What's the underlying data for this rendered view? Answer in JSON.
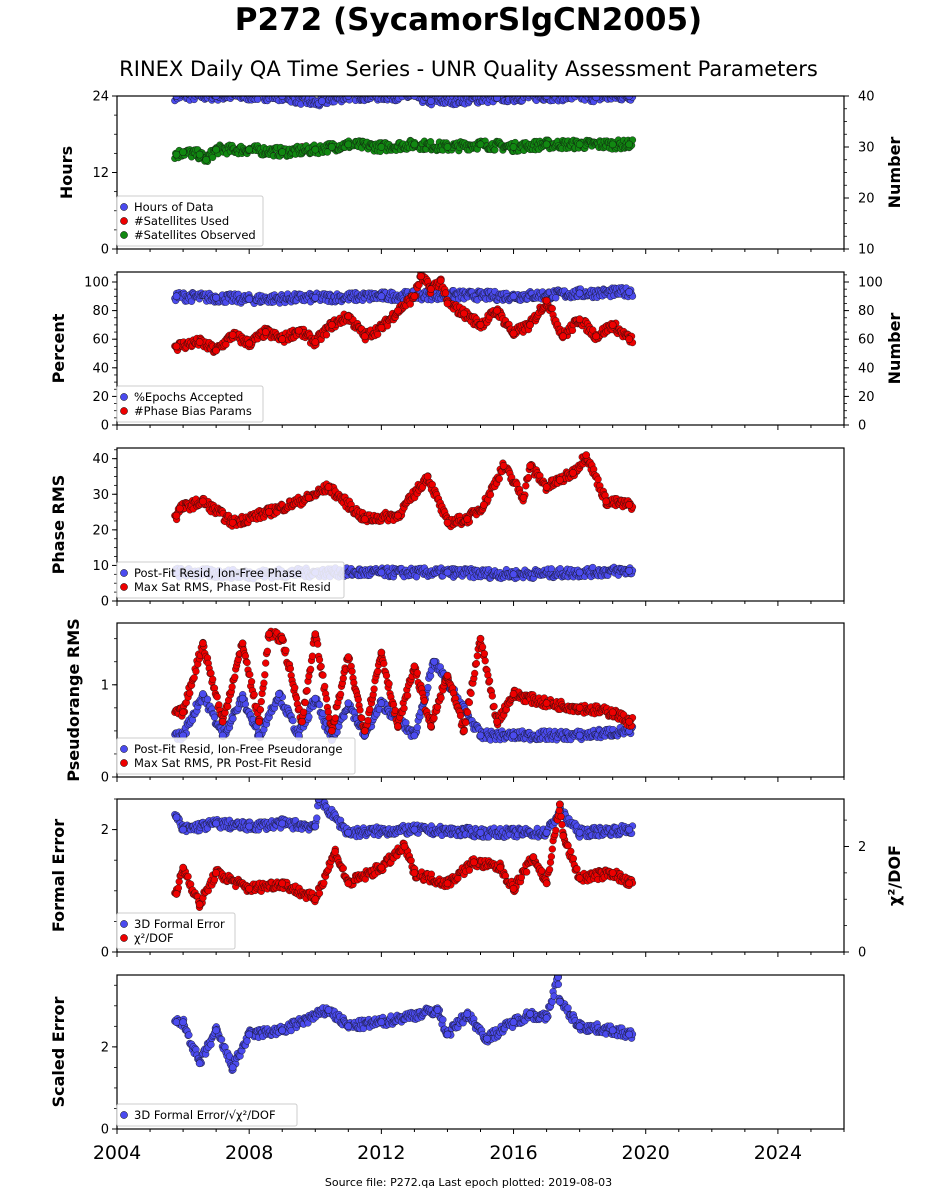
{
  "figure": {
    "title": "P272 (SycamorSlgCN2005)",
    "subtitle": "RINEX Daily QA Time Series - UNR Quality Assessment Parameters",
    "footer": "Source file: P272.qa Last epoch plotted: 2019-08-03"
  },
  "colors": {
    "blue": "#4b4bef",
    "red": "#ee0000",
    "green": "#118811",
    "edge": "#111111"
  },
  "chart_data": [
    {
      "type": "scatter",
      "name": "panel-hours",
      "xlim": [
        2004,
        2026
      ],
      "ylabel": "Hours",
      "ylim": [
        0,
        24
      ],
      "yticks": [
        0,
        12,
        24
      ],
      "ylabel_right": "Number",
      "ylim_right": [
        10,
        40
      ],
      "yticks_right": [
        10,
        20,
        30,
        40
      ],
      "legend": "bottom-left",
      "series": [
        {
          "name": "Hours of Data",
          "color": "blue",
          "axis": "left",
          "x_range": [
            2005.75,
            2019.6
          ],
          "points": [
            [
              2005.8,
              24
            ],
            [
              2007,
              24
            ],
            [
              2009,
              24
            ],
            [
              2010.1,
              22.8
            ],
            [
              2010.2,
              23.2
            ],
            [
              2011,
              24
            ],
            [
              2013,
              24
            ],
            [
              2013.5,
              23.2
            ],
            [
              2015.5,
              23.7
            ],
            [
              2017,
              24
            ],
            [
              2018.5,
              23.8
            ],
            [
              2019.5,
              24
            ]
          ]
        },
        {
          "name": "#Satellites Used",
          "color": "red",
          "axis": "right",
          "points": [
            [
              2009.6,
              30
            ]
          ]
        },
        {
          "name": "#Satellites Observed",
          "color": "green",
          "axis": "right",
          "x_range": [
            2005.75,
            2019.6
          ],
          "points": [
            [
              2005.8,
              28.5
            ],
            [
              2006,
              29
            ],
            [
              2006.5,
              28.5
            ],
            [
              2006.7,
              27.5
            ],
            [
              2007,
              29.5
            ],
            [
              2008,
              29.5
            ],
            [
              2009,
              29
            ],
            [
              2010,
              29.5
            ],
            [
              2010.5,
              30
            ],
            [
              2011,
              30.5
            ],
            [
              2012,
              30
            ],
            [
              2013,
              30.5
            ],
            [
              2014,
              30
            ],
            [
              2015,
              30.5
            ],
            [
              2016,
              30
            ],
            [
              2017,
              30.5
            ],
            [
              2018,
              30.5
            ],
            [
              2019,
              30.5
            ],
            [
              2019.5,
              30.5
            ]
          ]
        }
      ]
    },
    {
      "type": "scatter",
      "name": "panel-percent",
      "xlim": [
        2004,
        2026
      ],
      "ylabel": "Percent",
      "ylim": [
        0,
        107
      ],
      "yticks": [
        0,
        20,
        40,
        60,
        80,
        100
      ],
      "ylabel_right": "Number",
      "ylim_right": [
        0,
        107
      ],
      "yticks_right": [
        0,
        20,
        40,
        60,
        80,
        100
      ],
      "legend": "bottom-left",
      "series": [
        {
          "name": "%Epochs Accepted",
          "color": "blue",
          "axis": "left",
          "x_range": [
            2005.75,
            2019.6
          ],
          "points": [
            [
              2005.8,
              90
            ],
            [
              2007,
              89
            ],
            [
              2008,
              88
            ],
            [
              2010,
              89
            ],
            [
              2012,
              90
            ],
            [
              2014,
              91
            ],
            [
              2016,
              90
            ],
            [
              2018,
              92
            ],
            [
              2019.5,
              93
            ]
          ]
        },
        {
          "name": "#Phase Bias Params",
          "color": "red",
          "axis": "right",
          "x_range": [
            2005.75,
            2019.6
          ],
          "points": [
            [
              2005.8,
              55
            ],
            [
              2006.5,
              58
            ],
            [
              2007,
              52
            ],
            [
              2007.5,
              63
            ],
            [
              2008,
              57
            ],
            [
              2008.5,
              65
            ],
            [
              2009,
              60
            ],
            [
              2009.5,
              66
            ],
            [
              2010,
              58
            ],
            [
              2010.5,
              70
            ],
            [
              2011,
              76
            ],
            [
              2011.5,
              62
            ],
            [
              2012,
              68
            ],
            [
              2012.5,
              80
            ],
            [
              2013,
              90
            ],
            [
              2013.2,
              104
            ],
            [
              2013.5,
              95
            ],
            [
              2013.8,
              101
            ],
            [
              2014,
              85
            ],
            [
              2014.5,
              78
            ],
            [
              2015,
              70
            ],
            [
              2015.5,
              80
            ],
            [
              2016,
              64
            ],
            [
              2016.5,
              70
            ],
            [
              2017,
              87
            ],
            [
              2017.5,
              62
            ],
            [
              2018,
              74
            ],
            [
              2018.5,
              62
            ],
            [
              2019,
              70
            ],
            [
              2019.5,
              60
            ]
          ]
        }
      ]
    },
    {
      "type": "scatter",
      "name": "panel-phase-rms",
      "xlim": [
        2004,
        2026
      ],
      "ylabel": "Phase RMS",
      "ylim": [
        0,
        43
      ],
      "yticks": [
        0,
        10,
        20,
        30,
        40
      ],
      "legend": "bottom-left",
      "series": [
        {
          "name": "Post-Fit Resid, Ion-Free Phase",
          "color": "blue",
          "axis": "left",
          "x_range": [
            2005.75,
            2019.6
          ],
          "points": [
            [
              2005.8,
              8
            ],
            [
              2008,
              7.5
            ],
            [
              2010,
              8
            ],
            [
              2012,
              8
            ],
            [
              2014,
              8
            ],
            [
              2016,
              7.5
            ],
            [
              2018,
              8
            ],
            [
              2019.5,
              8.5
            ]
          ]
        },
        {
          "name": "Max Sat RMS, Phase Post-Fit Resid",
          "color": "red",
          "axis": "left",
          "x_range": [
            2005.75,
            2019.6
          ],
          "points": [
            [
              2005.8,
              24
            ],
            [
              2005.9,
              26
            ],
            [
              2006.6,
              28
            ],
            [
              2007.5,
              22
            ],
            [
              2008.6,
              25
            ],
            [
              2009.8,
              29
            ],
            [
              2010.4,
              32
            ],
            [
              2011.5,
              23
            ],
            [
              2012.5,
              24
            ],
            [
              2013.4,
              35
            ],
            [
              2014,
              22
            ],
            [
              2014.6,
              23
            ],
            [
              2015.1,
              27
            ],
            [
              2015.7,
              38
            ],
            [
              2016.3,
              29
            ],
            [
              2016.5,
              38
            ],
            [
              2017,
              32
            ],
            [
              2017.4,
              34
            ],
            [
              2017.8,
              36
            ],
            [
              2018.2,
              41
            ],
            [
              2018.8,
              28
            ],
            [
              2019.5,
              27
            ]
          ]
        }
      ]
    },
    {
      "type": "scatter",
      "name": "panel-pseudorange-rms",
      "xlim": [
        2004,
        2026
      ],
      "ylabel": "Pseudorange RMS",
      "ylim": [
        0,
        1.67
      ],
      "yticks": [
        0,
        1
      ],
      "legend": "bottom-left",
      "series": [
        {
          "name": "Post-Fit Resid, Ion-Free Pseudorange",
          "color": "blue",
          "axis": "left",
          "x_range": [
            2005.75,
            2019.6
          ],
          "points": [
            [
              2006,
              0.45
            ],
            [
              2006.6,
              0.9
            ],
            [
              2007.2,
              0.45
            ],
            [
              2007.8,
              0.85
            ],
            [
              2008.3,
              0.45
            ],
            [
              2008.9,
              0.9
            ],
            [
              2009.5,
              0.45
            ],
            [
              2010,
              0.85
            ],
            [
              2010.5,
              0.4
            ],
            [
              2011,
              0.8
            ],
            [
              2011.5,
              0.45
            ],
            [
              2012,
              0.8
            ],
            [
              2013,
              0.45
            ],
            [
              2013.6,
              1.25
            ],
            [
              2015,
              0.45
            ],
            [
              2016,
              0.45
            ],
            [
              2018,
              0.45
            ],
            [
              2019.5,
              0.5
            ]
          ]
        },
        {
          "name": "Max Sat RMS, PR Post-Fit Resid",
          "color": "red",
          "axis": "left",
          "x_range": [
            2005.75,
            2019.6
          ],
          "points": [
            [
              2006,
              0.7
            ],
            [
              2006.6,
              1.45
            ],
            [
              2007.2,
              0.6
            ],
            [
              2007.8,
              1.45
            ],
            [
              2008.3,
              0.6
            ],
            [
              2008.6,
              1.55
            ],
            [
              2009,
              1.5
            ],
            [
              2009.6,
              0.6
            ],
            [
              2010,
              1.55
            ],
            [
              2010.5,
              0.5
            ],
            [
              2011,
              1.3
            ],
            [
              2011.5,
              0.5
            ],
            [
              2012,
              1.35
            ],
            [
              2012.5,
              0.55
            ],
            [
              2013,
              1.2
            ],
            [
              2013.5,
              0.55
            ],
            [
              2014,
              1.1
            ],
            [
              2014.5,
              0.5
            ],
            [
              2015,
              1.5
            ],
            [
              2015.5,
              0.6
            ],
            [
              2016,
              0.9
            ],
            [
              2017,
              0.8
            ],
            [
              2018,
              0.75
            ],
            [
              2019,
              0.7
            ],
            [
              2019.5,
              0.6
            ]
          ]
        }
      ]
    },
    {
      "type": "scatter",
      "name": "panel-formal-error",
      "xlim": [
        2004,
        2026
      ],
      "ylabel": "Formal Error",
      "ylim": [
        0,
        2.5
      ],
      "yticks": [
        0,
        2
      ],
      "ylabel_right": "χ²/DOF",
      "ylim_right": [
        0,
        2.9
      ],
      "yticks_right": [
        0,
        2
      ],
      "legend": "bottom-left",
      "series": [
        {
          "name": "3D Formal Error",
          "color": "blue",
          "axis": "left",
          "x_range": [
            2005.75,
            2019.6
          ],
          "points": [
            [
              2005.8,
              2.2
            ],
            [
              2006,
              2
            ],
            [
              2007,
              2.1
            ],
            [
              2008,
              2.05
            ],
            [
              2009,
              2.1
            ],
            [
              2010,
              2.05
            ],
            [
              2010.1,
              2.5
            ],
            [
              2011,
              1.95
            ],
            [
              2013,
              2
            ],
            [
              2015,
              1.95
            ],
            [
              2017,
              1.95
            ],
            [
              2017.4,
              2.3
            ],
            [
              2018,
              1.95
            ],
            [
              2019.5,
              2
            ]
          ]
        },
        {
          "name": "χ²/DOF",
          "color": "red",
          "axis": "right",
          "x_range": [
            2005.75,
            2019.6
          ],
          "points": [
            [
              2005.8,
              1.1
            ],
            [
              2006,
              1.6
            ],
            [
              2006.5,
              0.9
            ],
            [
              2007,
              1.5
            ],
            [
              2008,
              1.2
            ],
            [
              2009,
              1.3
            ],
            [
              2010,
              1
            ],
            [
              2010.6,
              1.9
            ],
            [
              2011,
              1.3
            ],
            [
              2012,
              1.6
            ],
            [
              2012.7,
              2
            ],
            [
              2013,
              1.5
            ],
            [
              2014,
              1.3
            ],
            [
              2014.8,
              1.7
            ],
            [
              2015.6,
              1.6
            ],
            [
              2016,
              1.2
            ],
            [
              2016.6,
              1.8
            ],
            [
              2017,
              1.3
            ],
            [
              2017.4,
              2.8
            ],
            [
              2017.5,
              2.2
            ],
            [
              2018,
              1.4
            ],
            [
              2019,
              1.5
            ],
            [
              2019.5,
              1.3
            ]
          ]
        }
      ]
    },
    {
      "type": "scatter",
      "name": "panel-scaled-error",
      "xlim": [
        2004,
        2026
      ],
      "xticks": [
        2004,
        2008,
        2012,
        2016,
        2020,
        2024
      ],
      "ylabel": "Scaled Error",
      "ylim": [
        0,
        3.75
      ],
      "yticks": [
        0,
        2
      ],
      "legend": "bottom-left",
      "series": [
        {
          "name": "3D Formal Error/√χ²/DOF",
          "color": "blue",
          "axis": "left",
          "x_range": [
            2005.75,
            2019.6
          ],
          "points": [
            [
              2005.8,
              2.6
            ],
            [
              2006,
              2.6
            ],
            [
              2006.5,
              1.6
            ],
            [
              2007,
              2.4
            ],
            [
              2007.5,
              1.5
            ],
            [
              2008,
              2.3
            ],
            [
              2009,
              2.4
            ],
            [
              2010.4,
              2.9
            ],
            [
              2011,
              2.5
            ],
            [
              2012,
              2.6
            ],
            [
              2013.7,
              2.9
            ],
            [
              2014,
              2.3
            ],
            [
              2014.6,
              2.8
            ],
            [
              2015.2,
              2.2
            ],
            [
              2016,
              2.6
            ],
            [
              2016.5,
              2.8
            ],
            [
              2017,
              2.7
            ],
            [
              2017.35,
              3.7
            ],
            [
              2017.4,
              3.1
            ],
            [
              2018,
              2.5
            ],
            [
              2019,
              2.4
            ],
            [
              2019.5,
              2.3
            ]
          ]
        }
      ]
    }
  ]
}
